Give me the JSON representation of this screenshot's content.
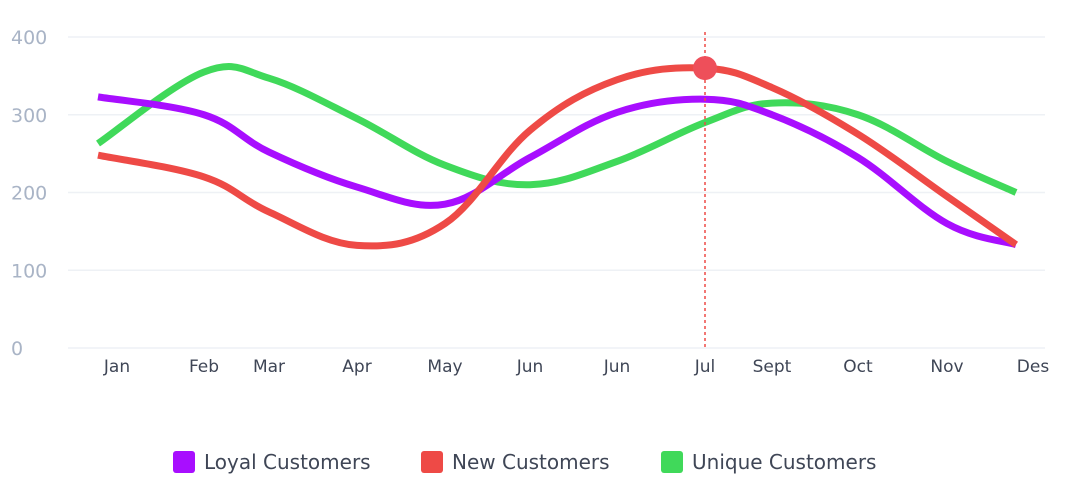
{
  "chart_data": {
    "type": "line",
    "categories": [
      "Jan",
      "Feb",
      "Mar",
      "Apr",
      "May",
      "Jun",
      "Jun",
      "Jul",
      "Sept",
      "Oct",
      "Nov",
      "Des"
    ],
    "ylim": [
      0,
      400
    ],
    "yticks": [
      "0",
      "100",
      "200",
      "300",
      "400"
    ],
    "grid": true,
    "legend_position": "bottom",
    "series": [
      {
        "name": "Loyal Customers",
        "color": "#a80eff",
        "values": [
          323,
          300,
          252,
          207,
          185,
          245,
          303,
          320,
          300,
          245,
          160,
          133
        ]
      },
      {
        "name": "New Customers",
        "color": "#ee4a46",
        "values": [
          248,
          220,
          175,
          132,
          160,
          280,
          345,
          360,
          335,
          275,
          195,
          133
        ]
      },
      {
        "name": "Unique Customers",
        "color": "#40d95a",
        "values": [
          263,
          355,
          347,
          295,
          235,
          210,
          240,
          290,
          315,
          300,
          240,
          200
        ]
      }
    ],
    "highlight": {
      "category": "Jul",
      "series": "New Customers",
      "value": 360,
      "marker_color": "#ee4f5a",
      "line_color": "#ee4a46"
    }
  }
}
